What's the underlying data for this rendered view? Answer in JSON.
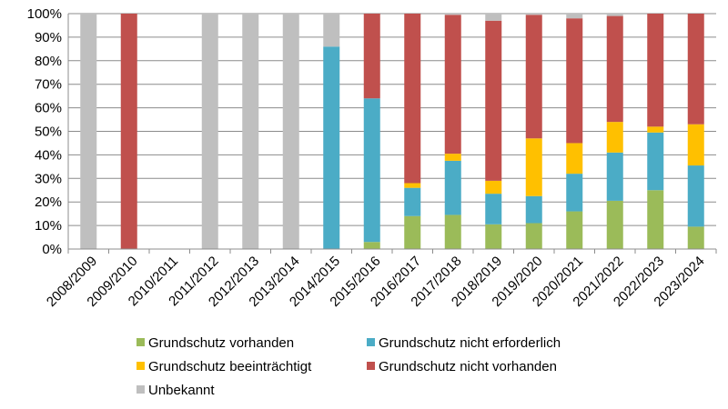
{
  "chart_data": {
    "type": "bar",
    "stacked": true,
    "categories": [
      "2008/2009",
      "2009/2010",
      "2010/2011",
      "2011/2012",
      "2012/2013",
      "2013/2014",
      "2014/2015",
      "2015/2016",
      "2016/2017",
      "2017/2018",
      "2018/2019",
      "2019/2020",
      "2020/2021",
      "2021/2022",
      "2022/2023",
      "2023/2024"
    ],
    "series": [
      {
        "name": "Grundschutz vorhanden",
        "color": "#9bbb59",
        "values": [
          0,
          0,
          0,
          0,
          0,
          0,
          0,
          3,
          14,
          14.5,
          10.5,
          11,
          16,
          20.5,
          25,
          9.5
        ]
      },
      {
        "name": "Grundschutz nicht erforderlich",
        "color": "#4bacc6",
        "values": [
          0,
          0,
          0,
          0,
          0,
          0,
          86,
          61,
          12,
          23,
          13,
          11.5,
          16,
          20.5,
          24.5,
          26
        ]
      },
      {
        "name": "Grundschutz beeinträchtigt",
        "color": "#ffc000",
        "values": [
          0,
          0,
          0,
          0,
          0,
          0,
          0,
          0,
          2,
          3,
          5.5,
          24.5,
          13,
          13,
          2.5,
          17.5
        ]
      },
      {
        "name": "Grundschutz nicht vorhanden",
        "color": "#c0504d",
        "values": [
          0,
          100,
          0,
          0,
          0,
          0,
          0,
          36,
          72,
          59,
          68,
          52.5,
          53,
          45,
          48,
          47
        ]
      },
      {
        "name": "Unbekannt",
        "color": "#bfbfbf",
        "values": [
          100,
          0,
          0,
          100,
          100,
          100,
          14,
          0,
          0,
          0.5,
          3,
          0.5,
          2,
          1,
          0,
          0
        ]
      }
    ],
    "y_ticks": [
      "0%",
      "10%",
      "20%",
      "30%",
      "40%",
      "50%",
      "60%",
      "70%",
      "80%",
      "90%",
      "100%"
    ],
    "ylim": [
      0,
      100
    ],
    "grid": true,
    "legend_position": "bottom"
  }
}
